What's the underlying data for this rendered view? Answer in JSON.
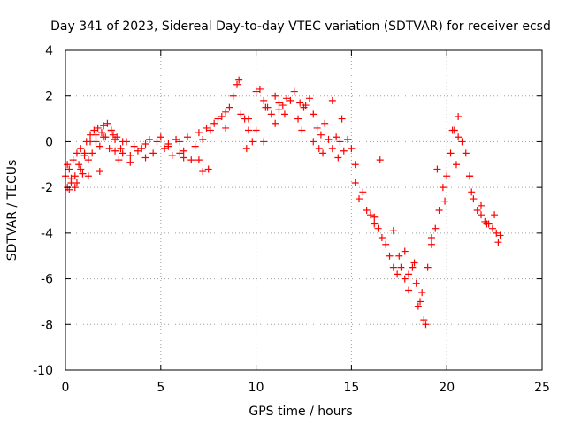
{
  "chart_data": {
    "type": "scatter",
    "title": "Day 341 of 2023, Sidereal Day-to-day VTEC variation (SDTVAR) for receiver ecsd",
    "xlabel": "GPS time / hours",
    "ylabel": "SDTVAR / TECUs",
    "xlim": [
      0,
      25
    ],
    "ylim": [
      -10,
      4
    ],
    "xticks": [
      0,
      5,
      10,
      15,
      20,
      25
    ],
    "yticks": [
      -10,
      -8,
      -6,
      -4,
      -2,
      0,
      2,
      4
    ],
    "grid": true,
    "marker": "+",
    "color": "#ff0000",
    "series": [
      {
        "name": "SDTVAR",
        "x": [
          0.0,
          0.1,
          0.2,
          0.3,
          0.4,
          0.5,
          0.6,
          0.7,
          0.8,
          0.9,
          1.0,
          1.1,
          1.2,
          1.3,
          1.4,
          1.5,
          1.6,
          1.7,
          1.8,
          1.9,
          2.0,
          2.1,
          2.2,
          2.3,
          2.4,
          2.5,
          2.6,
          2.7,
          2.8,
          2.9,
          3.0,
          3.2,
          3.4,
          3.6,
          3.8,
          4.0,
          4.2,
          4.4,
          4.6,
          4.8,
          5.0,
          5.2,
          5.4,
          5.6,
          5.8,
          6.0,
          6.2,
          6.4,
          6.6,
          6.8,
          7.0,
          7.2,
          7.4,
          7.6,
          7.8,
          8.0,
          8.2,
          8.4,
          8.6,
          8.8,
          9.0,
          9.1,
          9.2,
          9.4,
          9.6,
          9.8,
          10.0,
          10.2,
          10.4,
          10.6,
          10.8,
          11.0,
          11.2,
          11.4,
          11.6,
          11.8,
          12.0,
          12.2,
          12.4,
          12.6,
          12.8,
          13.0,
          13.2,
          13.4,
          13.6,
          13.8,
          14.0,
          14.2,
          14.4,
          14.6,
          14.8,
          15.0,
          15.2,
          15.4,
          15.6,
          15.8,
          16.0,
          16.2,
          16.4,
          16.6,
          16.8,
          17.0,
          17.2,
          17.4,
          17.6,
          17.8,
          18.0,
          18.2,
          18.4,
          18.6,
          18.8,
          19.0,
          19.2,
          19.4,
          19.6,
          19.8,
          20.0,
          20.2,
          20.4,
          20.6,
          20.8,
          21.0,
          21.2,
          21.4,
          21.6,
          21.8,
          22.0,
          22.2,
          22.4,
          22.6,
          22.8,
          0.1,
          0.3,
          0.5,
          0.8,
          1.0,
          1.3,
          1.6,
          2.0,
          2.4,
          3.0,
          6.0,
          7.0,
          7.5,
          9.5,
          10.0,
          10.5,
          11.0,
          11.5,
          12.5,
          13.0,
          13.5,
          14.0,
          14.5,
          16.5,
          17.5,
          18.0,
          18.5,
          18.9,
          19.5,
          20.3,
          20.6,
          21.2,
          21.8,
          22.5,
          0.2,
          0.6,
          1.2,
          1.8,
          2.6,
          3.4,
          4.2,
          5.4,
          6.2,
          7.2,
          8.4,
          9.6,
          10.4,
          11.2,
          12.3,
          13.3,
          14.3,
          15.2,
          16.2,
          17.2,
          17.8,
          18.3,
          18.7,
          19.2,
          19.9,
          20.5,
          21.3,
          22.1,
          22.7
        ],
        "y": [
          -1.5,
          -2.0,
          -1.2,
          -1.8,
          -0.8,
          -1.5,
          -0.5,
          -1.0,
          -0.3,
          -1.4,
          -0.6,
          0.0,
          -0.8,
          0.3,
          -0.5,
          0.5,
          0.0,
          0.6,
          -0.2,
          0.4,
          0.7,
          0.2,
          0.8,
          -0.3,
          0.5,
          0.3,
          -0.4,
          0.2,
          -0.8,
          -0.3,
          -0.5,
          0.0,
          -0.6,
          -0.2,
          -0.4,
          -0.3,
          -0.1,
          0.1,
          -0.5,
          0.0,
          0.2,
          -0.3,
          -0.1,
          -0.6,
          0.1,
          0.0,
          -0.4,
          0.2,
          -0.8,
          -0.2,
          0.4,
          0.1,
          0.6,
          0.5,
          0.8,
          1.0,
          1.1,
          1.3,
          1.5,
          2.0,
          2.5,
          2.7,
          1.2,
          1.0,
          0.5,
          0.0,
          2.2,
          2.3,
          1.8,
          1.5,
          1.2,
          0.8,
          1.7,
          1.6,
          1.9,
          1.8,
          2.2,
          1.0,
          0.5,
          1.6,
          1.9,
          1.2,
          0.6,
          0.3,
          0.8,
          0.1,
          -0.3,
          0.2,
          0.0,
          -0.4,
          0.1,
          -0.3,
          -1.8,
          -2.5,
          -2.2,
          -3.0,
          -3.2,
          -3.6,
          -3.8,
          -4.2,
          -4.5,
          -5.0,
          -5.5,
          -5.8,
          -5.5,
          -6.0,
          -5.8,
          -5.5,
          -6.2,
          -7.0,
          -7.8,
          -5.5,
          -4.5,
          -3.8,
          -3.0,
          -2.0,
          -1.5,
          -0.5,
          0.5,
          1.1,
          0.0,
          -0.5,
          -1.5,
          -2.5,
          -3.0,
          -3.2,
          -3.5,
          -3.6,
          -3.8,
          -4.0,
          -4.1,
          -1.0,
          -1.6,
          -2.0,
          -1.2,
          -0.5,
          0.0,
          0.3,
          0.2,
          0.5,
          0.0,
          -0.5,
          -0.8,
          -1.2,
          -0.3,
          0.5,
          1.5,
          2.0,
          1.2,
          1.5,
          0.0,
          -0.5,
          1.8,
          1.0,
          -0.8,
          -5.0,
          -6.5,
          -7.2,
          -8.0,
          -1.2,
          0.5,
          0.2,
          -1.5,
          -2.8,
          -3.2,
          -2.1,
          -1.8,
          -1.5,
          -1.3,
          0.1,
          -0.9,
          -0.7,
          -0.2,
          -0.7,
          -1.3,
          0.6,
          1.0,
          0.0,
          1.4,
          1.7,
          -0.3,
          -0.7,
          -1.0,
          -3.3,
          -3.9,
          -4.8,
          -5.3,
          -6.6,
          -4.2,
          -2.6,
          -1.0,
          -2.2,
          -3.6,
          -4.4
        ]
      }
    ]
  }
}
